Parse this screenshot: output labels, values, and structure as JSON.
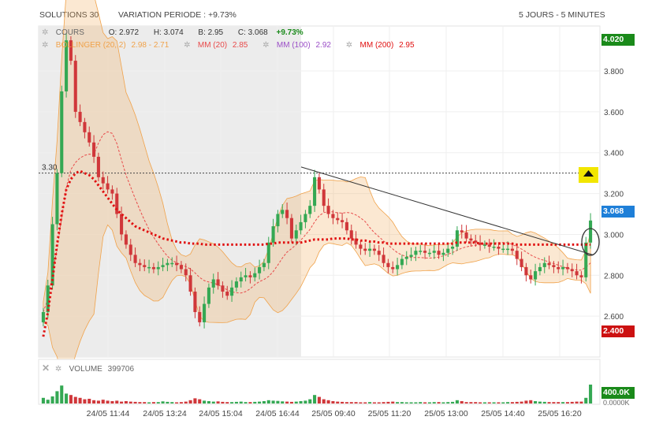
{
  "header": {
    "instrument": "SOLUTIONS 30",
    "variation": "VARIATION PERIODE : +9.73%",
    "period": "5 JOURS - 5 MINUTES"
  },
  "legend": {
    "cours": "COURS",
    "open": "O: 2.972",
    "high": "H: 3.074",
    "low": "B: 2.95",
    "close": "C: 3.068",
    "change": "+9.73%",
    "bollinger": "BOLLINGER (20, 2)",
    "bollinger_vals": "2.98 - 2.71",
    "mm20": "MM (20)",
    "mm20_val": "2.85",
    "mm100": "MM (100)",
    "mm100_val": "2.92",
    "mm200": "MM (200)",
    "mm200_val": "2.95",
    "volume": "VOLUME",
    "volume_val": "399706"
  },
  "price_tags": {
    "top": "4.020",
    "last": "3.068",
    "bottom": "2.400",
    "vol_top": "400.0K",
    "vol_bottom": "0.0000K"
  },
  "colors": {
    "up": "#34a853",
    "down": "#d0373a",
    "bollinger": "#f0a24a",
    "mm20": "#e84a4a",
    "mm100": "#9b4fc7",
    "mm200": "#e01010",
    "accent_green": "#1a8a1a",
    "accent_red": "#cc1111",
    "accent_blue": "#1e7fd8",
    "alert_yellow": "#f2e600",
    "trendline": "#333333",
    "resistance": "#444444"
  },
  "chart_data": {
    "type": "candlestick",
    "yticks": [
      2.6,
      2.8,
      3.0,
      3.2,
      3.4,
      3.6,
      3.8
    ],
    "ytick_labels": [
      "2.600",
      "2.800",
      "3.000",
      "3.200",
      "3.400",
      "3.600",
      "3.800"
    ],
    "ylim": [
      2.4,
      4.02
    ],
    "xtick_labels": [
      "24/05 11:44",
      "24/05 13:24",
      "24/05 15:04",
      "24/05 16:44",
      "25/05 09:40",
      "25/05 11:20",
      "25/05 13:00",
      "25/05 14:40",
      "25/05 16:20"
    ],
    "resistance": {
      "label": "3.30",
      "value": 3.3
    },
    "trendline": {
      "from": 3.33,
      "to": 2.9
    },
    "prices": [
      2.62,
      2.75,
      3.05,
      3.3,
      3.7,
      3.95,
      3.85,
      3.6,
      3.55,
      3.5,
      3.45,
      3.38,
      3.28,
      3.25,
      3.22,
      3.2,
      3.1,
      3.0,
      2.95,
      2.9,
      2.86,
      2.85,
      2.84,
      2.84,
      2.83,
      2.84,
      2.85,
      2.86,
      2.86,
      2.85,
      2.83,
      2.8,
      2.72,
      2.62,
      2.57,
      2.66,
      2.74,
      2.78,
      2.75,
      2.72,
      2.7,
      2.74,
      2.77,
      2.79,
      2.8,
      2.79,
      2.81,
      2.84,
      2.86,
      2.96,
      3.04,
      3.1,
      3.12,
      3.08,
      2.98,
      3.02,
      3.06,
      3.1,
      3.14,
      3.28,
      3.22,
      3.14,
      3.1,
      3.08,
      3.07,
      3.06,
      3.02,
      2.98,
      2.95,
      2.93,
      2.92,
      2.93,
      2.92,
      2.9,
      2.86,
      2.84,
      2.83,
      2.85,
      2.88,
      2.89,
      2.9,
      2.92,
      2.92,
      2.91,
      2.91,
      2.92,
      2.9,
      2.91,
      2.93,
      2.94,
      3.02,
      3.01,
      2.98,
      2.97,
      2.96,
      2.95,
      2.95,
      2.94,
      2.94,
      2.93,
      2.93,
      2.93,
      2.92,
      2.88,
      2.84,
      2.8,
      2.78,
      2.82,
      2.84,
      2.86,
      2.85,
      2.84,
      2.83,
      2.84,
      2.83,
      2.82,
      2.8,
      2.79,
      2.96,
      3.068
    ],
    "volumes": [
      120,
      80,
      150,
      260,
      380,
      210,
      180,
      140,
      120,
      90,
      100,
      70,
      60,
      80,
      60,
      50,
      60,
      40,
      50,
      40,
      35,
      30,
      30,
      25,
      30,
      30,
      45,
      35,
      30,
      25,
      30,
      40,
      70,
      110,
      90,
      60,
      50,
      40,
      45,
      35,
      30,
      30,
      35,
      40,
      30,
      30,
      35,
      40,
      50,
      70,
      60,
      55,
      45,
      40,
      35,
      40,
      50,
      60,
      90,
      180,
      140,
      90,
      70,
      50,
      40,
      35,
      30,
      30,
      30,
      25,
      25,
      30,
      25,
      25,
      30,
      35,
      40,
      30,
      30,
      25,
      25,
      25,
      30,
      25,
      25,
      30,
      30,
      25,
      30,
      35,
      70,
      50,
      30,
      30,
      30,
      25,
      25,
      25,
      25,
      25,
      25,
      30,
      30,
      35,
      40,
      60,
      70,
      50,
      40,
      35,
      30,
      30,
      30,
      30,
      30,
      35,
      40,
      40,
      120,
      400
    ],
    "ma200": [
      2.5,
      2.62,
      2.78,
      2.95,
      3.1,
      3.22,
      3.27,
      3.3,
      3.31,
      3.3,
      3.29,
      3.27,
      3.24,
      3.21,
      3.18,
      3.15,
      3.12,
      3.1,
      3.08,
      3.06,
      3.04,
      3.03,
      3.02,
      3.01,
      3.0,
      2.99,
      2.98,
      2.975,
      2.97,
      2.965,
      2.96,
      2.96,
      2.955,
      2.955,
      2.955,
      2.95,
      2.95,
      2.95,
      2.95,
      2.95,
      2.95,
      2.95,
      2.95,
      2.95,
      2.95,
      2.95,
      2.95,
      2.95,
      2.95,
      2.955,
      2.955,
      2.96,
      2.96,
      2.96,
      2.96,
      2.96,
      2.96,
      2.965,
      2.97,
      2.975,
      2.975,
      2.975,
      2.975,
      2.98,
      2.98,
      2.98,
      2.98,
      2.975,
      2.975,
      2.97,
      2.97,
      2.965,
      2.965,
      2.96,
      2.96,
      2.955,
      2.955,
      2.955,
      2.955,
      2.955,
      2.955,
      2.955,
      2.955,
      2.955,
      2.955,
      2.955,
      2.955,
      2.955,
      2.955,
      2.955,
      2.96,
      2.96,
      2.96,
      2.96,
      2.96,
      2.955,
      2.955,
      2.955,
      2.955,
      2.955,
      2.955,
      2.955,
      2.955,
      2.95,
      2.95,
      2.95,
      2.95,
      2.95,
      2.95,
      2.95,
      2.95,
      2.95,
      2.95,
      2.95,
      2.95,
      2.95,
      2.95,
      2.95,
      2.95,
      2.95
    ]
  }
}
